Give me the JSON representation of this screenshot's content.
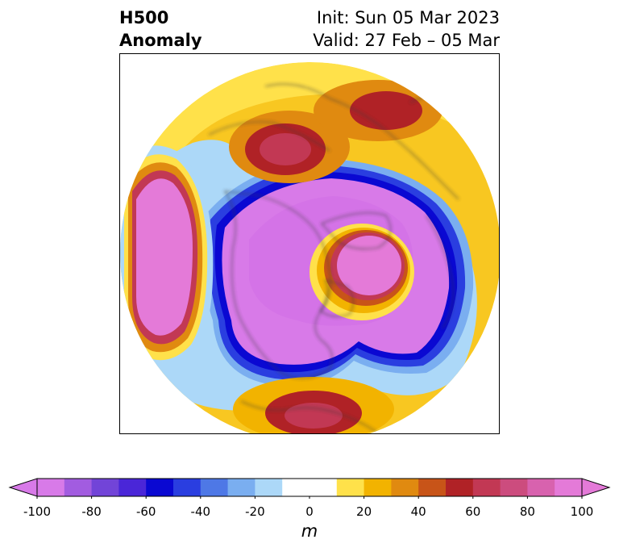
{
  "title": {
    "line1": "H500",
    "line2": "Anomaly",
    "init": "Init: Sun 05 Mar 2023",
    "valid": "Valid: 27 Feb – 05 Mar"
  },
  "colorbar": {
    "units": "m",
    "min": -100,
    "max": 100,
    "step": 10,
    "colors": [
      "#d87ae8",
      "#a25ce0",
      "#7244d8",
      "#4a26d8",
      "#0a08d2",
      "#2a3ee0",
      "#4e78e6",
      "#7aaef0",
      "#acd8f8",
      "#ffffff",
      "#ffffff",
      "#ffe14a",
      "#f2b300",
      "#e08a10",
      "#c85418",
      "#b02226",
      "#c23854",
      "#cc4c7e",
      "#d862ae",
      "#e47ad8"
    ],
    "tick_values": [
      -100,
      -80,
      -60,
      -40,
      -20,
      0,
      20,
      40,
      60,
      80,
      100
    ],
    "tick_labels": [
      "-100",
      "-80",
      "-60",
      "-40",
      "-20",
      "0",
      "20",
      "40",
      "60",
      "80",
      "100"
    ]
  },
  "map": {
    "projection": "north-polar-stereographic",
    "features": [
      "coastlines",
      "country-borders",
      "state-borders"
    ]
  }
}
